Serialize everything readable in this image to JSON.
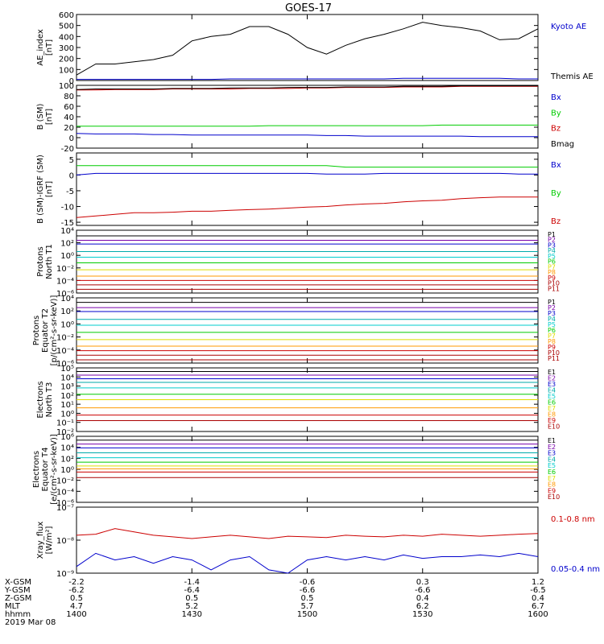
{
  "title": "GOES-17",
  "x_axis": {
    "rows": [
      {
        "label": "X-GSM",
        "values": [
          "-2.2",
          "-1.4",
          "-0.6",
          "0.3",
          "1.2"
        ]
      },
      {
        "label": "Y-GSM",
        "values": [
          "-6.2",
          "-6.4",
          "-6.6",
          "-6.6",
          "-6.5"
        ]
      },
      {
        "label": "Z-GSM",
        "values": [
          "0.5",
          "0.5",
          "0.5",
          "0.4",
          "0.4"
        ]
      },
      {
        "label": "MLT",
        "values": [
          "4.7",
          "5.2",
          "5.7",
          "6.2",
          "6.7"
        ]
      },
      {
        "label": "hhmm",
        "values": [
          "1400",
          "1430",
          "1500",
          "1530",
          "1600"
        ]
      }
    ],
    "date": "2019 Mar 08"
  },
  "colors": {
    "axis": "#000000",
    "black": "#000000",
    "blue": "#0000cc",
    "green": "#00cc00",
    "red": "#cc0000",
    "cyan": "#00cccc",
    "yellow": "#dddd00",
    "orange": "#ff9900",
    "purple": "#7700aa",
    "teal": "#00aaaa",
    "darkred": "#aa0000"
  },
  "chart_data": [
    {
      "type": "line",
      "ylabel": [
        "AE_index",
        "[nT]"
      ],
      "ylim": [
        0,
        600
      ],
      "yticks": [
        "0",
        "100",
        "200",
        "300",
        "400",
        "500",
        "600"
      ],
      "x": [
        "1400",
        "1405",
        "1410",
        "1415",
        "1420",
        "1425",
        "1430",
        "1435",
        "1440",
        "1445",
        "1450",
        "1455",
        "1500",
        "1505",
        "1510",
        "1515",
        "1520",
        "1525",
        "1530",
        "1535",
        "1540",
        "1545",
        "1550",
        "1555",
        "1600"
      ],
      "series": [
        {
          "name": "Kyoto AE",
          "color": "blue",
          "values": [
            10,
            10,
            10,
            10,
            10,
            10,
            10,
            10,
            15,
            15,
            15,
            15,
            15,
            15,
            15,
            15,
            15,
            20,
            20,
            20,
            20,
            20,
            20,
            15,
            15
          ]
        },
        {
          "name": "Themis AE",
          "color": "black",
          "values": [
            50,
            150,
            150,
            170,
            190,
            230,
            360,
            400,
            420,
            490,
            490,
            420,
            300,
            240,
            320,
            380,
            420,
            470,
            530,
            500,
            480,
            450,
            370,
            380,
            470
          ]
        }
      ]
    },
    {
      "type": "line",
      "ylabel": [
        "B (SM)",
        "[nT]"
      ],
      "ylim": [
        -20,
        100
      ],
      "yticks": [
        "-20",
        "0",
        "20",
        "40",
        "60",
        "80",
        "100"
      ],
      "series": [
        {
          "name": "Bx",
          "color": "blue",
          "values": [
            8,
            7,
            7,
            7,
            6,
            6,
            5,
            5,
            5,
            5,
            5,
            5,
            5,
            4,
            4,
            3,
            3,
            3,
            3,
            3,
            3,
            2,
            2,
            2,
            2
          ]
        },
        {
          "name": "By",
          "color": "green",
          "values": [
            22,
            22,
            22,
            22,
            22,
            22,
            22,
            22,
            22,
            22,
            23,
            23,
            23,
            23,
            23,
            23,
            23,
            23,
            23,
            24,
            24,
            24,
            24,
            24,
            24
          ]
        },
        {
          "name": "Bz",
          "color": "red",
          "values": [
            91,
            91,
            92,
            92,
            92,
            93,
            93,
            93,
            93,
            94,
            94,
            94,
            95,
            95,
            96,
            96,
            96,
            97,
            97,
            97,
            98,
            98,
            98,
            98,
            98
          ]
        },
        {
          "name": "Bmag",
          "color": "black",
          "values": [
            92,
            93,
            93,
            93,
            93,
            94,
            94,
            94,
            95,
            95,
            95,
            96,
            96,
            96,
            97,
            97,
            97,
            98,
            98,
            98,
            99,
            99,
            99,
            99,
            99
          ]
        }
      ]
    },
    {
      "type": "line",
      "ylabel": [
        "B (SM)-IGRF (SM)",
        "[nT]"
      ],
      "ylim": [
        -16,
        7
      ],
      "yticks": [
        "-15",
        "-10",
        "-5",
        "0",
        "5"
      ],
      "series": [
        {
          "name": "Bx",
          "color": "blue",
          "values": [
            0,
            0.5,
            0.5,
            0.5,
            0.5,
            0.5,
            0.5,
            0.5,
            0.5,
            0.5,
            0.5,
            0.5,
            0.5,
            0.3,
            0.3,
            0.3,
            0.5,
            0.5,
            0.5,
            0.5,
            0.5,
            0.5,
            0.5,
            0.3,
            0.3
          ]
        },
        {
          "name": "By",
          "color": "green",
          "values": [
            3,
            3,
            3,
            3,
            3,
            3,
            3,
            3,
            3,
            3,
            3,
            3,
            3,
            3,
            2.5,
            2.5,
            2.5,
            2.5,
            2.5,
            2.5,
            2.5,
            2.5,
            2.5,
            2.5,
            2.5
          ]
        },
        {
          "name": "Bz",
          "color": "red",
          "values": [
            -13.5,
            -13,
            -12.5,
            -12,
            -12,
            -11.8,
            -11.5,
            -11.5,
            -11.2,
            -11,
            -10.8,
            -10.5,
            -10.2,
            -10,
            -9.5,
            -9.2,
            -9,
            -8.5,
            -8.2,
            -8,
            -7.5,
            -7.2,
            -7,
            -7,
            -7
          ]
        }
      ]
    },
    {
      "type": "line",
      "ylabel": [
        "Protons",
        "North T1"
      ],
      "log": true,
      "ylim": [
        -6,
        4
      ],
      "yticks": [
        "10⁻⁶",
        "10⁻⁴",
        "10⁻²",
        "10⁰",
        "10²",
        "10⁴"
      ],
      "channels": [
        {
          "name": "P1",
          "color": "black",
          "level": 3.1
        },
        {
          "name": "P2",
          "color": "purple",
          "level": 2.4
        },
        {
          "name": "P3",
          "color": "blue",
          "level": 1.8
        },
        {
          "name": "P4",
          "color": "teal",
          "level": 0.6
        },
        {
          "name": "P5",
          "color": "cyan",
          "level": -0.3
        },
        {
          "name": "P6",
          "color": "green",
          "level": -1.2
        },
        {
          "name": "P7",
          "color": "yellow",
          "level": -2.3
        },
        {
          "name": "P8",
          "color": "orange",
          "level": -3.3
        },
        {
          "name": "P9",
          "color": "red",
          "level": -4.0
        },
        {
          "name": "P10",
          "color": "darkred",
          "level": -4.7
        },
        {
          "name": "P11",
          "color": "darkred",
          "level": -5.4
        }
      ]
    },
    {
      "type": "line",
      "ylabel": [
        "Protons",
        "Equator T2",
        "[p/(cm²-s-sr-keV)]"
      ],
      "log": true,
      "ylim": [
        -6,
        4
      ],
      "yticks": [
        "10⁻⁶",
        "10⁻⁴",
        "10⁻²",
        "10⁰",
        "10²",
        "10⁴"
      ],
      "channels": [
        {
          "name": "P1",
          "color": "black",
          "level": 3.3
        },
        {
          "name": "P2",
          "color": "purple",
          "level": 2.5
        },
        {
          "name": "P3",
          "color": "blue",
          "level": 1.9
        },
        {
          "name": "P4",
          "color": "teal",
          "level": 0.7
        },
        {
          "name": "P5",
          "color": "cyan",
          "level": -0.2
        },
        {
          "name": "P6",
          "color": "green",
          "level": -1.3
        },
        {
          "name": "P7",
          "color": "yellow",
          "level": -2.4
        },
        {
          "name": "P8",
          "color": "orange",
          "level": -3.4
        },
        {
          "name": "P9",
          "color": "red",
          "level": -4.1
        },
        {
          "name": "P10",
          "color": "darkred",
          "level": -4.8
        },
        {
          "name": "P11",
          "color": "darkred",
          "level": -5.5
        }
      ]
    },
    {
      "type": "line",
      "ylabel": [
        "Electrons",
        "North T3"
      ],
      "log": true,
      "ylim": [
        -2,
        5
      ],
      "yticks": [
        "10⁻²",
        "10⁻¹",
        "10⁰",
        "10¹",
        "10²",
        "10³",
        "10⁴",
        "10⁵"
      ],
      "channels": [
        {
          "name": "E1",
          "color": "black",
          "level": 4.6
        },
        {
          "name": "E2",
          "color": "purple",
          "level": 4.2
        },
        {
          "name": "E3",
          "color": "blue",
          "level": 3.8
        },
        {
          "name": "E4",
          "color": "teal",
          "level": 3.4
        },
        {
          "name": "E5",
          "color": "cyan",
          "level": 2.8
        },
        {
          "name": "E6",
          "color": "green",
          "level": 2.1
        },
        {
          "name": "E7",
          "color": "yellow",
          "level": 1.5
        },
        {
          "name": "E8",
          "color": "orange",
          "level": 0.6
        },
        {
          "name": "E9",
          "color": "red",
          "level": -0.2
        },
        {
          "name": "E10",
          "color": "darkred",
          "level": -0.8
        }
      ]
    },
    {
      "type": "line",
      "ylabel": [
        "Electrons",
        "Equator T4",
        "[e/(cm²-s-sr-keV)]"
      ],
      "log": true,
      "ylim": [
        -6,
        6
      ],
      "yticks": [
        "10⁻⁶",
        "10⁻⁴",
        "10⁻²",
        "10⁰",
        "10²",
        "10⁴",
        "10⁶"
      ],
      "channels": [
        {
          "name": "E1",
          "color": "black",
          "level": 5.3
        },
        {
          "name": "E2",
          "color": "purple",
          "level": 4.6
        },
        {
          "name": "E3",
          "color": "blue",
          "level": 3.9
        },
        {
          "name": "E4",
          "color": "teal",
          "level": 3.0
        },
        {
          "name": "E5",
          "color": "cyan",
          "level": 2.1
        },
        {
          "name": "E6",
          "color": "green",
          "level": 1.3
        },
        {
          "name": "E7",
          "color": "yellow",
          "level": 0.6
        },
        {
          "name": "E8",
          "color": "orange",
          "level": 0.1
        },
        {
          "name": "E9",
          "color": "red",
          "level": -0.5
        },
        {
          "name": "E10",
          "color": "darkred",
          "level": -1.5
        }
      ]
    },
    {
      "type": "line",
      "ylabel": [
        "Xray_flux",
        "[W/m²]"
      ],
      "log": true,
      "ylim": [
        -9,
        -7
      ],
      "yticks": [
        "10⁻⁹",
        "10⁻⁸",
        "10⁻⁷"
      ],
      "series": [
        {
          "name": "0.1-0.8 nm",
          "color": "red",
          "values": [
            -7.85,
            -7.82,
            -7.65,
            -7.75,
            -7.85,
            -7.9,
            -7.95,
            -7.9,
            -7.85,
            -7.9,
            -7.95,
            -7.88,
            -7.9,
            -7.92,
            -7.85,
            -7.88,
            -7.9,
            -7.85,
            -7.88,
            -7.82,
            -7.85,
            -7.88,
            -7.85,
            -7.82,
            -7.8
          ]
        },
        {
          "name": "0.05-0.4 nm",
          "color": "blue",
          "values": [
            -8.8,
            -8.4,
            -8.6,
            -8.5,
            -8.7,
            -8.5,
            -8.6,
            -8.9,
            -8.6,
            -8.5,
            -8.9,
            -9.0,
            -8.6,
            -8.5,
            -8.6,
            -8.5,
            -8.6,
            -8.45,
            -8.55,
            -8.5,
            -8.5,
            -8.45,
            -8.5,
            -8.4,
            -8.5
          ]
        }
      ]
    }
  ]
}
